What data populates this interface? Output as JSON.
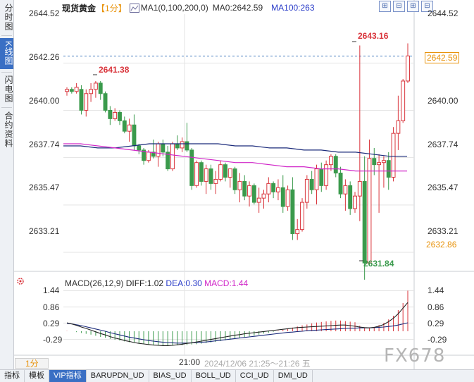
{
  "left_tabs": [
    {
      "label": "分时图",
      "active": false
    },
    {
      "label": "K线图",
      "active": true
    },
    {
      "label": "闪电图",
      "active": false
    },
    {
      "label": "合约资料",
      "active": false
    }
  ],
  "toolbar": {
    "title": "现货黄金",
    "period": "【1分】",
    "ma1": "MA1(0,100,200,0)",
    "ma0": "MA0:2642.59",
    "ma100": "MA100:263",
    "window_buttons": [
      "⊞",
      "⊟",
      "⊞",
      "⊟"
    ]
  },
  "price_axis": {
    "left_labels": [
      "2644.52",
      "2642.26",
      "2640.00",
      "2637.74",
      "2635.47",
      "2633.21"
    ],
    "right_labels": [
      "2644.52",
      "2640.00",
      "2637.74",
      "2635.47",
      "2633.21"
    ],
    "current_price": "2642.59",
    "low_marker": "2632.86"
  },
  "annotations": {
    "high_max": "2643.16",
    "high_left": "2641.38",
    "low_min": "2631.84"
  },
  "macd": {
    "name": "MACD(26,12,9)",
    "diff": "DIFF:1.02",
    "dea": "DEA:0.30",
    "macd": "MACD:1.44",
    "left_labels": [
      "1.44",
      "0.86",
      "0.29",
      "-0.29"
    ],
    "right_labels": [
      "1.44",
      "0.86",
      "0.29",
      "-0.29"
    ]
  },
  "time_axis": {
    "period_button": "1分",
    "time": "21:00",
    "range": "2024/12/06 21:25～21:26 五"
  },
  "bottom_tabs": [
    "指标",
    "模板",
    "VIP指标",
    "BARUPDN_UD",
    "BIAS_UD",
    "BOLL_UD",
    "CCI_UD",
    "DMI_UD"
  ],
  "watermark": "FX678",
  "colors": {
    "up": "#d9343b",
    "down": "#3a9a4c",
    "ma_navy": "#1a2a7a",
    "ma_magenta": "#d026c8",
    "accent": "#3a6fc4",
    "orange": "#e8930c"
  },
  "chart_data": {
    "type": "candlestick",
    "ylim": [
      2632.3,
      2644.6
    ],
    "candles": [
      {
        "o": 2640.9,
        "h": 2641.1,
        "l": 2640.7,
        "c": 2641.0
      },
      {
        "o": 2641.0,
        "h": 2641.1,
        "l": 2640.8,
        "c": 2640.9
      },
      {
        "o": 2640.9,
        "h": 2641.3,
        "l": 2640.8,
        "c": 2641.1
      },
      {
        "o": 2641.0,
        "h": 2641.2,
        "l": 2639.8,
        "c": 2640.0
      },
      {
        "o": 2640.0,
        "h": 2641.0,
        "l": 2639.7,
        "c": 2640.8
      },
      {
        "o": 2640.8,
        "h": 2641.3,
        "l": 2640.4,
        "c": 2641.0
      },
      {
        "o": 2641.0,
        "h": 2641.4,
        "l": 2640.6,
        "c": 2641.3
      },
      {
        "o": 2641.3,
        "h": 2641.4,
        "l": 2640.5,
        "c": 2640.8
      },
      {
        "o": 2640.8,
        "h": 2640.9,
        "l": 2639.9,
        "c": 2640.0
      },
      {
        "o": 2640.0,
        "h": 2640.2,
        "l": 2639.3,
        "c": 2639.6
      },
      {
        "o": 2639.6,
        "h": 2640.1,
        "l": 2639.5,
        "c": 2639.9
      },
      {
        "o": 2639.9,
        "h": 2640.0,
        "l": 2639.3,
        "c": 2639.5
      },
      {
        "o": 2639.5,
        "h": 2639.7,
        "l": 2638.9,
        "c": 2639.0
      },
      {
        "o": 2639.0,
        "h": 2639.6,
        "l": 2638.5,
        "c": 2639.3
      },
      {
        "o": 2639.3,
        "h": 2639.8,
        "l": 2638.1,
        "c": 2638.3
      },
      {
        "o": 2638.3,
        "h": 2638.4,
        "l": 2637.9,
        "c": 2638.1
      },
      {
        "o": 2638.1,
        "h": 2638.2,
        "l": 2637.4,
        "c": 2637.6
      },
      {
        "o": 2637.6,
        "h": 2638.1,
        "l": 2637.5,
        "c": 2638.0
      },
      {
        "o": 2638.0,
        "h": 2638.6,
        "l": 2637.7,
        "c": 2637.8
      },
      {
        "o": 2637.8,
        "h": 2638.5,
        "l": 2637.3,
        "c": 2638.4
      },
      {
        "o": 2638.4,
        "h": 2638.6,
        "l": 2637.8,
        "c": 2638.0
      },
      {
        "o": 2638.0,
        "h": 2638.3,
        "l": 2637.1,
        "c": 2637.2
      },
      {
        "o": 2637.2,
        "h": 2638.5,
        "l": 2637.1,
        "c": 2638.4
      },
      {
        "o": 2638.4,
        "h": 2638.8,
        "l": 2638.1,
        "c": 2638.2
      },
      {
        "o": 2638.2,
        "h": 2638.7,
        "l": 2638.0,
        "c": 2638.5
      },
      {
        "o": 2638.5,
        "h": 2639.4,
        "l": 2638.0,
        "c": 2638.1
      },
      {
        "o": 2638.1,
        "h": 2638.2,
        "l": 2636.2,
        "c": 2636.4
      },
      {
        "o": 2636.4,
        "h": 2637.6,
        "l": 2636.3,
        "c": 2637.5
      },
      {
        "o": 2637.5,
        "h": 2637.6,
        "l": 2636.4,
        "c": 2636.6
      },
      {
        "o": 2636.6,
        "h": 2637.4,
        "l": 2636.0,
        "c": 2637.2
      },
      {
        "o": 2637.2,
        "h": 2637.4,
        "l": 2636.2,
        "c": 2636.5
      },
      {
        "o": 2636.5,
        "h": 2637.1,
        "l": 2636.0,
        "c": 2636.7
      },
      {
        "o": 2636.7,
        "h": 2637.6,
        "l": 2636.6,
        "c": 2637.4
      },
      {
        "o": 2637.4,
        "h": 2637.5,
        "l": 2636.6,
        "c": 2636.8
      },
      {
        "o": 2636.8,
        "h": 2637.2,
        "l": 2636.3,
        "c": 2637.2
      },
      {
        "o": 2637.2,
        "h": 2637.3,
        "l": 2636.0,
        "c": 2636.2
      },
      {
        "o": 2636.2,
        "h": 2637.0,
        "l": 2635.6,
        "c": 2636.6
      },
      {
        "o": 2636.6,
        "h": 2636.9,
        "l": 2635.7,
        "c": 2635.9
      },
      {
        "o": 2635.9,
        "h": 2636.6,
        "l": 2635.4,
        "c": 2636.4
      },
      {
        "o": 2636.4,
        "h": 2636.5,
        "l": 2635.5,
        "c": 2635.6
      },
      {
        "o": 2635.6,
        "h": 2636.3,
        "l": 2635.1,
        "c": 2635.8
      },
      {
        "o": 2635.8,
        "h": 2636.2,
        "l": 2635.3,
        "c": 2636.0
      },
      {
        "o": 2636.0,
        "h": 2636.8,
        "l": 2635.6,
        "c": 2636.5
      },
      {
        "o": 2636.5,
        "h": 2636.6,
        "l": 2635.8,
        "c": 2636.1
      },
      {
        "o": 2636.1,
        "h": 2636.7,
        "l": 2635.7,
        "c": 2636.3
      },
      {
        "o": 2636.3,
        "h": 2636.9,
        "l": 2635.1,
        "c": 2635.4
      },
      {
        "o": 2635.4,
        "h": 2636.4,
        "l": 2635.2,
        "c": 2636.2
      },
      {
        "o": 2636.2,
        "h": 2636.8,
        "l": 2633.8,
        "c": 2634.1
      },
      {
        "o": 2634.1,
        "h": 2634.8,
        "l": 2633.8,
        "c": 2634.3
      },
      {
        "o": 2634.3,
        "h": 2635.8,
        "l": 2634.2,
        "c": 2635.6
      },
      {
        "o": 2635.6,
        "h": 2636.9,
        "l": 2635.3,
        "c": 2636.7
      },
      {
        "o": 2636.7,
        "h": 2637.1,
        "l": 2636.0,
        "c": 2636.2
      },
      {
        "o": 2636.2,
        "h": 2637.4,
        "l": 2635.5,
        "c": 2637.2
      },
      {
        "o": 2637.2,
        "h": 2637.5,
        "l": 2636.1,
        "c": 2636.4
      },
      {
        "o": 2636.4,
        "h": 2637.6,
        "l": 2636.2,
        "c": 2637.4
      },
      {
        "o": 2637.4,
        "h": 2637.9,
        "l": 2637.1,
        "c": 2637.8
      },
      {
        "o": 2637.8,
        "h": 2637.9,
        "l": 2636.8,
        "c": 2637.0
      },
      {
        "o": 2637.0,
        "h": 2637.3,
        "l": 2635.8,
        "c": 2636.0
      },
      {
        "o": 2636.0,
        "h": 2636.7,
        "l": 2635.2,
        "c": 2636.4
      },
      {
        "o": 2636.4,
        "h": 2636.6,
        "l": 2635.0,
        "c": 2635.3
      },
      {
        "o": 2635.3,
        "h": 2636.1,
        "l": 2635.1,
        "c": 2635.9
      },
      {
        "o": 2635.9,
        "h": 2643.1,
        "l": 2634.7,
        "c": 2636.6
      },
      {
        "o": 2636.6,
        "h": 2637.8,
        "l": 2631.9,
        "c": 2632.7
      },
      {
        "o": 2632.7,
        "h": 2638.6,
        "l": 2632.6,
        "c": 2637.7
      },
      {
        "o": 2637.7,
        "h": 2638.2,
        "l": 2636.9,
        "c": 2637.4
      },
      {
        "o": 2637.4,
        "h": 2637.9,
        "l": 2635.1,
        "c": 2637.5
      },
      {
        "o": 2637.5,
        "h": 2637.8,
        "l": 2636.3,
        "c": 2637.6
      },
      {
        "o": 2637.6,
        "h": 2638.0,
        "l": 2636.2,
        "c": 2636.8
      },
      {
        "o": 2636.8,
        "h": 2639.2,
        "l": 2636.6,
        "c": 2638.9
      },
      {
        "o": 2638.9,
        "h": 2640.7,
        "l": 2638.1,
        "c": 2639.5
      },
      {
        "o": 2639.5,
        "h": 2641.5,
        "l": 2639.4,
        "c": 2641.4
      },
      {
        "o": 2641.4,
        "h": 2643.2,
        "l": 2641.3,
        "c": 2642.6
      }
    ],
    "ma_navy": [
      2638.3,
      2638.3,
      2638.2,
      2638.2,
      2638.3,
      2638.4,
      2638.4,
      2638.4,
      2638.4,
      2638.4,
      2638.3,
      2638.3,
      2638.2,
      2638.2,
      2638.1,
      2638.1,
      2638.0,
      2638.0,
      2637.9,
      2637.8,
      2637.8
    ],
    "ma_magenta": [
      2638.4,
      2638.4,
      2638.3,
      2638.2,
      2638.1,
      2638.0,
      2637.9,
      2637.8,
      2637.7,
      2637.6,
      2637.5,
      2637.5,
      2637.4,
      2637.3,
      2637.3,
      2637.2,
      2637.2,
      2637.1,
      2637.1,
      2637.1,
      2637.1
    ],
    "macd_ylim": [
      -0.75,
      1.55
    ],
    "macd_hist": [
      0.01,
      0.0,
      -0.03,
      -0.06,
      -0.09,
      -0.12,
      -0.16,
      -0.2,
      -0.23,
      -0.27,
      -0.3,
      -0.33,
      -0.36,
      -0.39,
      -0.41,
      -0.43,
      -0.45,
      -0.47,
      -0.48,
      -0.5,
      -0.5,
      -0.51,
      -0.51,
      -0.5,
      -0.5,
      -0.49,
      -0.47,
      -0.46,
      -0.44,
      -0.42,
      -0.4,
      -0.38,
      -0.35,
      -0.32,
      -0.3,
      -0.27,
      -0.24,
      -0.21,
      -0.18,
      -0.15,
      -0.12,
      -0.08,
      -0.05,
      -0.02,
      0.02,
      0.05,
      0.09,
      0.13,
      0.17,
      0.21,
      0.24,
      0.28,
      0.31,
      0.33,
      0.35,
      0.37,
      0.38,
      0.38,
      0.36,
      0.34,
      0.32,
      0.2,
      0.12,
      0.1,
      0.15,
      0.22,
      0.3,
      0.42,
      0.55,
      0.75,
      1.0,
      1.44
    ],
    "macd_diff": [
      0.3,
      0.26,
      0.21,
      0.15,
      0.1,
      0.04,
      -0.02,
      -0.08,
      -0.13,
      -0.19,
      -0.24,
      -0.28,
      -0.33,
      -0.36,
      -0.4,
      -0.43,
      -0.45,
      -0.47,
      -0.49,
      -0.5,
      -0.51,
      -0.51,
      -0.5,
      -0.48,
      -0.46,
      -0.43,
      -0.41,
      -0.38,
      -0.35,
      -0.32,
      -0.29,
      -0.26,
      -0.23,
      -0.2,
      -0.17,
      -0.14,
      -0.12,
      -0.09,
      -0.07,
      -0.05,
      -0.03,
      -0.01,
      0.01,
      0.03,
      0.05,
      0.07,
      0.09,
      0.11,
      0.13,
      0.14,
      0.15,
      0.16,
      0.17,
      0.18,
      0.19,
      0.2,
      0.21,
      0.22,
      0.22,
      0.2,
      0.18,
      0.15,
      0.13,
      0.12,
      0.14,
      0.18,
      0.24,
      0.34,
      0.46,
      0.62,
      0.82,
      1.02
    ],
    "macd_dea": [
      0.28,
      0.26,
      0.23,
      0.2,
      0.16,
      0.12,
      0.08,
      0.04,
      0.0,
      -0.05,
      -0.09,
      -0.13,
      -0.17,
      -0.21,
      -0.24,
      -0.27,
      -0.3,
      -0.33,
      -0.35,
      -0.37,
      -0.39,
      -0.4,
      -0.41,
      -0.42,
      -0.42,
      -0.42,
      -0.41,
      -0.4,
      -0.39,
      -0.38,
      -0.36,
      -0.34,
      -0.32,
      -0.3,
      -0.28,
      -0.26,
      -0.24,
      -0.22,
      -0.2,
      -0.18,
      -0.16,
      -0.14,
      -0.12,
      -0.1,
      -0.08,
      -0.06,
      -0.04,
      -0.03,
      -0.01,
      0.0,
      0.02,
      0.03,
      0.04,
      0.05,
      0.06,
      0.07,
      0.08,
      0.09,
      0.1,
      0.11,
      0.11,
      0.12,
      0.12,
      0.12,
      0.13,
      0.14,
      0.15,
      0.17,
      0.19,
      0.22,
      0.26,
      0.3
    ]
  }
}
